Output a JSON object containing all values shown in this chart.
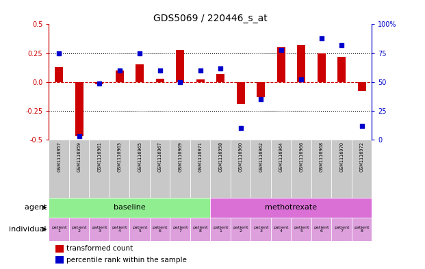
{
  "title": "GDS5069 / 220446_s_at",
  "samples": [
    "GSM1116957",
    "GSM1116959",
    "GSM1116961",
    "GSM1116963",
    "GSM1116965",
    "GSM1116967",
    "GSM1116969",
    "GSM1116971",
    "GSM1116958",
    "GSM1116960",
    "GSM1116962",
    "GSM1116964",
    "GSM1116966",
    "GSM1116968",
    "GSM1116970",
    "GSM1116972"
  ],
  "bar_values": [
    0.13,
    -0.47,
    -0.02,
    0.1,
    0.15,
    0.03,
    0.28,
    0.02,
    0.07,
    -0.19,
    -0.13,
    0.3,
    0.32,
    0.25,
    0.22,
    -0.08
  ],
  "dot_values": [
    75,
    3,
    49,
    60,
    75,
    60,
    50,
    60,
    62,
    10,
    35,
    78,
    52,
    88,
    82,
    12
  ],
  "ylim_left": [
    -0.5,
    0.5
  ],
  "ylim_right": [
    0,
    100
  ],
  "bar_color": "#cc0000",
  "dot_color": "#0000cc",
  "grid_color": "#000000",
  "agent_baseline_color": "#90ee90",
  "agent_methotrexate_color": "#da70d6",
  "individual_color": "#dda0dd",
  "sample_bg_color": "#c8c8c8",
  "agent_label_baseline": "baseline",
  "agent_label_methotrexate": "methotrexate",
  "agent_row_label": "agent",
  "individual_row_label": "individual",
  "n_baseline": 8,
  "n_methotrexate": 8,
  "legend_bar": "transformed count",
  "legend_dot": "percentile rank within the sample",
  "yticks_left": [
    -0.5,
    -0.25,
    0.0,
    0.25,
    0.5
  ],
  "yticks_right": [
    0,
    25,
    50,
    75,
    100
  ]
}
